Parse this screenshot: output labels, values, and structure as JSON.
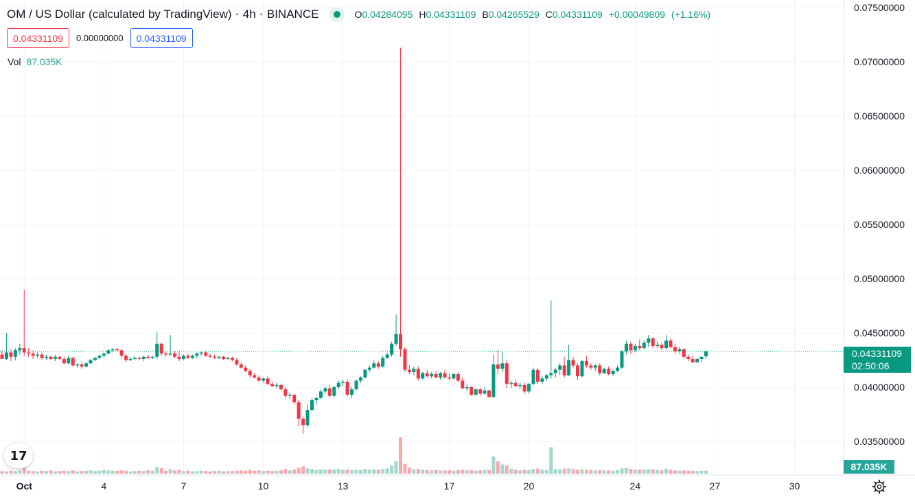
{
  "header": {
    "symbol_title": "OM / US Dollar (calculated by TradingView)",
    "interval": "4h",
    "exchange": "BINANCE",
    "ohlc": {
      "open_label": "O",
      "open": "0.04284095",
      "high_label": "H",
      "high": "0.04331109",
      "low_label": "B",
      "low": "0.04265529",
      "close_label": "C",
      "close": "0.04331109",
      "change": "+0.00049809",
      "change_pct": "(+1.16%)"
    }
  },
  "quotes": {
    "sell": "0.04331109",
    "spread": "0.00000000",
    "buy": "0.04331109"
  },
  "volume_legend": {
    "label": "Vol",
    "value": "87.035K"
  },
  "price_scale_label": {
    "price": "0.04331109",
    "countdown": "02:50:06"
  },
  "volume_scale_label": "87.035K",
  "logo": {
    "text": "17"
  },
  "colors": {
    "up": "#089981",
    "down": "#f23645",
    "vol_up": "#a5d6d0",
    "vol_down": "#f7a9ad",
    "grid": "#f0f3fa"
  },
  "chart_data": {
    "type": "candlestick",
    "interval": "4h",
    "ylim": [
      0.0335,
      0.0758
    ],
    "y_ticks": [
      "0.03500000",
      "0.04000000",
      "0.04500000",
      "0.05000000",
      "0.05500000",
      "0.06000000",
      "0.06500000",
      "0.07000000",
      "0.07500000"
    ],
    "y_tick_values": [
      0.035,
      0.04,
      0.045,
      0.05,
      0.055,
      0.06,
      0.065,
      0.07,
      0.075
    ],
    "x_ticks": [
      {
        "label": "Oct",
        "bar": 5
      },
      {
        "label": "4",
        "bar": 23
      },
      {
        "label": "7",
        "bar": 41
      },
      {
        "label": "10",
        "bar": 59
      },
      {
        "label": "13",
        "bar": 77
      },
      {
        "label": "17",
        "bar": 101
      },
      {
        "label": "20",
        "bar": 119
      },
      {
        "label": "24",
        "bar": 143
      },
      {
        "label": "27",
        "bar": 161
      },
      {
        "label": "30",
        "bar": 179
      }
    ],
    "last_price_line": 0.04331109,
    "candles": [
      [
        0.043,
        0.0434,
        0.0426,
        0.0426,
        8
      ],
      [
        0.0426,
        0.045,
        0.0425,
        0.0432,
        7
      ],
      [
        0.0432,
        0.0435,
        0.0424,
        0.0428,
        9
      ],
      [
        0.0428,
        0.0436,
        0.0425,
        0.0434,
        8
      ],
      [
        0.0434,
        0.044,
        0.043,
        0.0436,
        10
      ],
      [
        0.0436,
        0.049,
        0.0429,
        0.0432,
        22
      ],
      [
        0.0432,
        0.0436,
        0.0428,
        0.0431,
        9
      ],
      [
        0.0431,
        0.0434,
        0.0426,
        0.0429,
        8
      ],
      [
        0.0429,
        0.0432,
        0.0427,
        0.043,
        7
      ],
      [
        0.043,
        0.0432,
        0.0425,
        0.0427,
        9
      ],
      [
        0.0427,
        0.043,
        0.0425,
        0.0428,
        8
      ],
      [
        0.0428,
        0.0429,
        0.0425,
        0.0426,
        10
      ],
      [
        0.0426,
        0.043,
        0.0424,
        0.0428,
        7
      ],
      [
        0.0428,
        0.0429,
        0.0425,
        0.0426,
        8
      ],
      [
        0.0426,
        0.0428,
        0.0421,
        0.0422,
        9
      ],
      [
        0.0422,
        0.0429,
        0.0421,
        0.0427,
        8
      ],
      [
        0.0427,
        0.0428,
        0.0419,
        0.042,
        10
      ],
      [
        0.042,
        0.0422,
        0.0418,
        0.0421,
        7
      ],
      [
        0.0421,
        0.0423,
        0.0417,
        0.0419,
        8
      ],
      [
        0.0419,
        0.0423,
        0.0418,
        0.0422,
        9
      ],
      [
        0.0422,
        0.0426,
        0.0421,
        0.0425,
        10
      ],
      [
        0.0425,
        0.0428,
        0.0424,
        0.0427,
        8
      ],
      [
        0.0427,
        0.043,
        0.0426,
        0.0429,
        9
      ],
      [
        0.0429,
        0.0432,
        0.0427,
        0.0431,
        11
      ],
      [
        0.0431,
        0.0435,
        0.043,
        0.0434,
        10
      ],
      [
        0.0434,
        0.0436,
        0.0432,
        0.0435,
        9
      ],
      [
        0.0435,
        0.0436,
        0.0433,
        0.0434,
        8
      ],
      [
        0.0434,
        0.0435,
        0.0427,
        0.0429,
        10
      ],
      [
        0.0429,
        0.0431,
        0.0423,
        0.0425,
        9
      ],
      [
        0.0425,
        0.0428,
        0.0424,
        0.0426,
        7
      ],
      [
        0.0426,
        0.0429,
        0.0425,
        0.0427,
        8
      ],
      [
        0.0427,
        0.0428,
        0.0425,
        0.0426,
        9
      ],
      [
        0.0426,
        0.0429,
        0.0424,
        0.0428,
        8
      ],
      [
        0.0428,
        0.043,
        0.0426,
        0.0427,
        10
      ],
      [
        0.0427,
        0.0429,
        0.0426,
        0.0428,
        9
      ],
      [
        0.0428,
        0.0451,
        0.0426,
        0.044,
        20
      ],
      [
        0.044,
        0.0441,
        0.0429,
        0.0431,
        17
      ],
      [
        0.0431,
        0.0433,
        0.0428,
        0.043,
        9
      ],
      [
        0.043,
        0.0448,
        0.0429,
        0.0431,
        14
      ],
      [
        0.0431,
        0.0433,
        0.0427,
        0.0428,
        10
      ],
      [
        0.0428,
        0.0433,
        0.0424,
        0.0426,
        12
      ],
      [
        0.0426,
        0.043,
        0.0425,
        0.0429,
        8
      ],
      [
        0.0429,
        0.0431,
        0.0426,
        0.0427,
        9
      ],
      [
        0.0427,
        0.043,
        0.0426,
        0.0429,
        7
      ],
      [
        0.0429,
        0.0432,
        0.0427,
        0.0431,
        8
      ],
      [
        0.0431,
        0.0433,
        0.0429,
        0.0432,
        9
      ],
      [
        0.0432,
        0.0433,
        0.0428,
        0.0429,
        8
      ],
      [
        0.0429,
        0.0431,
        0.0427,
        0.0428,
        7
      ],
      [
        0.0428,
        0.043,
        0.0426,
        0.0427,
        8
      ],
      [
        0.0427,
        0.0429,
        0.0426,
        0.0428,
        9
      ],
      [
        0.0428,
        0.0429,
        0.0425,
        0.0426,
        7
      ],
      [
        0.0426,
        0.0428,
        0.0425,
        0.0427,
        8
      ],
      [
        0.0427,
        0.0428,
        0.0424,
        0.0425,
        8
      ],
      [
        0.0425,
        0.0427,
        0.042,
        0.0421,
        9
      ],
      [
        0.0421,
        0.0423,
        0.0417,
        0.0418,
        10
      ],
      [
        0.0418,
        0.042,
        0.0414,
        0.0415,
        9
      ],
      [
        0.0415,
        0.0417,
        0.0409,
        0.0411,
        11
      ],
      [
        0.0411,
        0.0413,
        0.0408,
        0.0409,
        9
      ],
      [
        0.0409,
        0.0411,
        0.0405,
        0.0406,
        10
      ],
      [
        0.0406,
        0.0409,
        0.0404,
        0.0408,
        8
      ],
      [
        0.0408,
        0.041,
        0.0402,
        0.0403,
        9
      ],
      [
        0.0403,
        0.0405,
        0.04,
        0.0401,
        8
      ],
      [
        0.0401,
        0.0404,
        0.0399,
        0.0402,
        9
      ],
      [
        0.0402,
        0.0403,
        0.0397,
        0.0398,
        10
      ],
      [
        0.0398,
        0.04,
        0.039,
        0.0392,
        14
      ],
      [
        0.0392,
        0.0395,
        0.0389,
        0.0393,
        10
      ],
      [
        0.0393,
        0.0394,
        0.0384,
        0.0386,
        12
      ],
      [
        0.0386,
        0.0388,
        0.0364,
        0.0371,
        18
      ],
      [
        0.0371,
        0.0373,
        0.0357,
        0.0365,
        22
      ],
      [
        0.0365,
        0.0384,
        0.0363,
        0.0379,
        16
      ],
      [
        0.0379,
        0.039,
        0.0378,
        0.0388,
        14
      ],
      [
        0.0388,
        0.0391,
        0.0384,
        0.039,
        11
      ],
      [
        0.039,
        0.0398,
        0.0389,
        0.0396,
        13
      ],
      [
        0.0396,
        0.0401,
        0.0394,
        0.0399,
        12
      ],
      [
        0.0399,
        0.0402,
        0.039,
        0.0392,
        13
      ],
      [
        0.0392,
        0.0401,
        0.0391,
        0.04,
        12
      ],
      [
        0.04,
        0.0406,
        0.0398,
        0.0404,
        14
      ],
      [
        0.0404,
        0.0407,
        0.0401,
        0.0405,
        12
      ],
      [
        0.0405,
        0.0407,
        0.0392,
        0.0393,
        13
      ],
      [
        0.0393,
        0.04,
        0.039,
        0.0398,
        11
      ],
      [
        0.0398,
        0.0407,
        0.0397,
        0.0406,
        12
      ],
      [
        0.0406,
        0.041,
        0.0404,
        0.0409,
        11
      ],
      [
        0.0409,
        0.0417,
        0.0408,
        0.0416,
        14
      ],
      [
        0.0416,
        0.042,
        0.0414,
        0.0418,
        12
      ],
      [
        0.0418,
        0.0425,
        0.0417,
        0.0422,
        13
      ],
      [
        0.0422,
        0.0424,
        0.0417,
        0.0419,
        12
      ],
      [
        0.0419,
        0.0429,
        0.0418,
        0.0427,
        14
      ],
      [
        0.0427,
        0.0432,
        0.0426,
        0.043,
        16
      ],
      [
        0.043,
        0.0442,
        0.0428,
        0.044,
        25
      ],
      [
        0.044,
        0.0467,
        0.0438,
        0.0449,
        38
      ],
      [
        0.0449,
        0.0713,
        0.0428,
        0.0435,
        110
      ],
      [
        0.0435,
        0.0437,
        0.0414,
        0.0416,
        30
      ],
      [
        0.0416,
        0.042,
        0.0412,
        0.0414,
        18
      ],
      [
        0.0414,
        0.0419,
        0.0411,
        0.0417,
        13
      ],
      [
        0.0417,
        0.0419,
        0.0406,
        0.0408,
        14
      ],
      [
        0.0408,
        0.0414,
        0.0407,
        0.0413,
        12
      ],
      [
        0.0413,
        0.0416,
        0.0409,
        0.041,
        11
      ],
      [
        0.041,
        0.0414,
        0.0408,
        0.0412,
        10
      ],
      [
        0.0412,
        0.0415,
        0.0408,
        0.0409,
        11
      ],
      [
        0.0409,
        0.0414,
        0.0407,
        0.0413,
        10
      ],
      [
        0.0413,
        0.0416,
        0.0408,
        0.0409,
        10
      ],
      [
        0.0409,
        0.0412,
        0.0406,
        0.0408,
        10
      ],
      [
        0.0408,
        0.0413,
        0.0407,
        0.0412,
        9
      ],
      [
        0.0412,
        0.0414,
        0.0405,
        0.0406,
        11
      ],
      [
        0.0406,
        0.0409,
        0.0398,
        0.0399,
        12
      ],
      [
        0.0399,
        0.0403,
        0.0396,
        0.04,
        10
      ],
      [
        0.04,
        0.0401,
        0.0392,
        0.0393,
        11
      ],
      [
        0.0393,
        0.0399,
        0.0392,
        0.0398,
        9
      ],
      [
        0.0398,
        0.0399,
        0.0392,
        0.0394,
        10
      ],
      [
        0.0394,
        0.04,
        0.0393,
        0.0397,
        11
      ],
      [
        0.0397,
        0.0398,
        0.039,
        0.0391,
        12
      ],
      [
        0.0391,
        0.043,
        0.039,
        0.0421,
        52
      ],
      [
        0.0421,
        0.0434,
        0.0412,
        0.0417,
        37
      ],
      [
        0.0417,
        0.0433,
        0.0414,
        0.0422,
        28
      ],
      [
        0.0422,
        0.0425,
        0.0399,
        0.0403,
        25
      ],
      [
        0.0403,
        0.0406,
        0.0399,
        0.0404,
        15
      ],
      [
        0.0404,
        0.0407,
        0.04,
        0.0401,
        12
      ],
      [
        0.0401,
        0.0404,
        0.0398,
        0.0402,
        10
      ],
      [
        0.0402,
        0.0404,
        0.0394,
        0.0396,
        12
      ],
      [
        0.0396,
        0.0404,
        0.0394,
        0.0403,
        11
      ],
      [
        0.0403,
        0.0418,
        0.0402,
        0.0416,
        14
      ],
      [
        0.0416,
        0.0418,
        0.0403,
        0.0405,
        15
      ],
      [
        0.0405,
        0.041,
        0.0403,
        0.0408,
        12
      ],
      [
        0.0408,
        0.0412,
        0.0406,
        0.0411,
        11
      ],
      [
        0.0411,
        0.048,
        0.0408,
        0.0413,
        80
      ],
      [
        0.0413,
        0.0418,
        0.0409,
        0.0416,
        14
      ],
      [
        0.0416,
        0.0422,
        0.0411,
        0.042,
        13
      ],
      [
        0.042,
        0.0428,
        0.0409,
        0.0411,
        15
      ],
      [
        0.0411,
        0.0439,
        0.041,
        0.0425,
        16
      ],
      [
        0.0425,
        0.0428,
        0.0418,
        0.042,
        14
      ],
      [
        0.042,
        0.0422,
        0.0407,
        0.041,
        12
      ],
      [
        0.041,
        0.0425,
        0.0409,
        0.0424,
        13
      ],
      [
        0.0424,
        0.0429,
        0.0418,
        0.042,
        12
      ],
      [
        0.042,
        0.0422,
        0.0416,
        0.0418,
        11
      ],
      [
        0.0418,
        0.0421,
        0.0415,
        0.042,
        10
      ],
      [
        0.042,
        0.0422,
        0.0411,
        0.0413,
        11
      ],
      [
        0.0413,
        0.0418,
        0.0412,
        0.0417,
        10
      ],
      [
        0.0417,
        0.0419,
        0.0411,
        0.0412,
        10
      ],
      [
        0.0412,
        0.0416,
        0.041,
        0.0415,
        9
      ],
      [
        0.0415,
        0.042,
        0.0414,
        0.0418,
        11
      ],
      [
        0.0418,
        0.0434,
        0.0417,
        0.0433,
        16
      ],
      [
        0.0433,
        0.0443,
        0.043,
        0.044,
        17
      ],
      [
        0.044,
        0.0442,
        0.0431,
        0.0434,
        14
      ],
      [
        0.0434,
        0.044,
        0.0432,
        0.0438,
        12
      ],
      [
        0.0438,
        0.0444,
        0.0434,
        0.0436,
        13
      ],
      [
        0.0436,
        0.0443,
        0.0435,
        0.0441,
        12
      ],
      [
        0.0441,
        0.0448,
        0.0437,
        0.0445,
        14
      ],
      [
        0.0445,
        0.0446,
        0.0436,
        0.0438,
        13
      ],
      [
        0.0438,
        0.0442,
        0.0436,
        0.0439,
        11
      ],
      [
        0.0439,
        0.0441,
        0.0434,
        0.0436,
        10
      ],
      [
        0.0436,
        0.0448,
        0.0435,
        0.0443,
        15
      ],
      [
        0.0443,
        0.0445,
        0.0436,
        0.0437,
        12
      ],
      [
        0.0437,
        0.044,
        0.0431,
        0.0433,
        10
      ],
      [
        0.0433,
        0.0437,
        0.0431,
        0.0435,
        9
      ],
      [
        0.0435,
        0.0436,
        0.0426,
        0.0428,
        10
      ],
      [
        0.0428,
        0.043,
        0.0424,
        0.0426,
        9
      ],
      [
        0.0426,
        0.0429,
        0.0422,
        0.0423,
        9
      ],
      [
        0.0423,
        0.0427,
        0.0422,
        0.0426,
        8
      ],
      [
        0.0426,
        0.0428,
        0.0423,
        0.0428,
        9
      ],
      [
        0.04284095,
        0.04331109,
        0.04265529,
        0.04331109,
        9
      ]
    ]
  }
}
